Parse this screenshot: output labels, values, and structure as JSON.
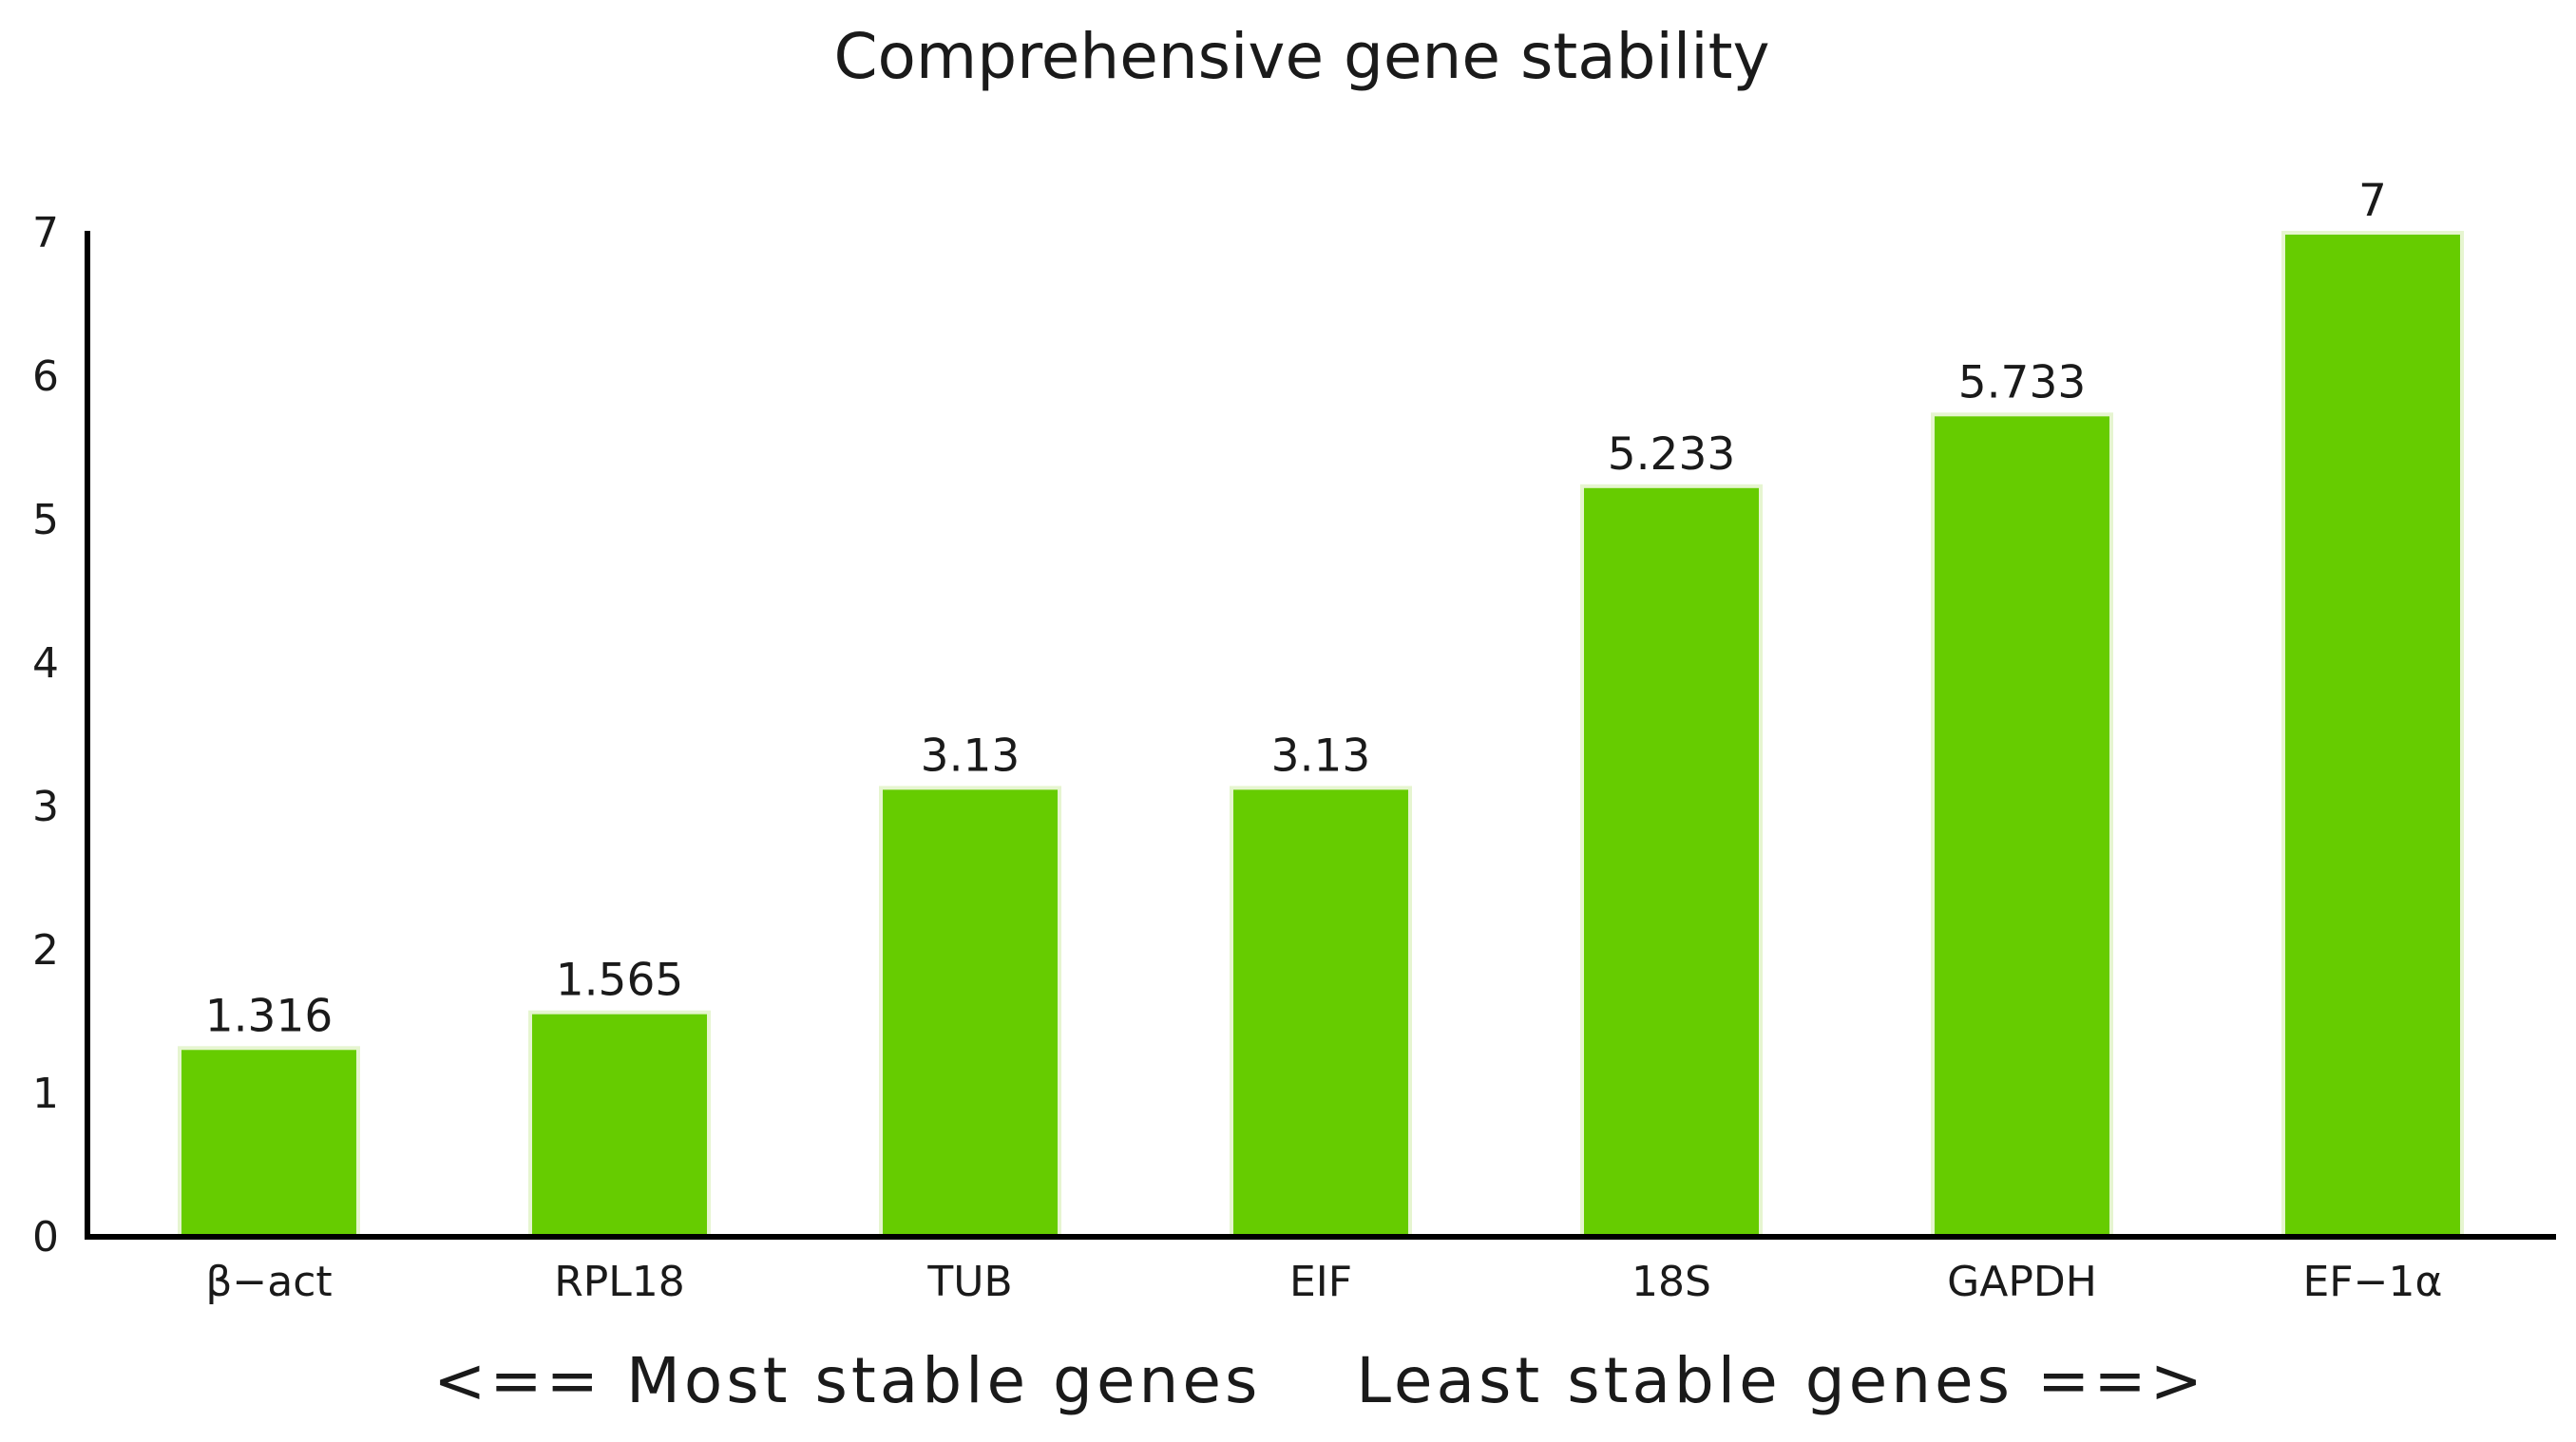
{
  "chart_data": {
    "type": "bar",
    "title": "Comprehensive gene stability",
    "xlabel": "<== Most stable genes    Least stable genes ==>",
    "ylabel": "",
    "categories": [
      "β−act",
      "RPL18",
      "TUB",
      "EIF",
      "18S",
      "GAPDH",
      "EF−1α"
    ],
    "values": [
      1.316,
      1.565,
      3.13,
      3.13,
      5.233,
      5.733,
      7
    ],
    "value_labels": [
      "1.316",
      "1.565",
      "3.13",
      "3.13",
      "5.233",
      "5.733",
      "7"
    ],
    "ylim": [
      0,
      7
    ],
    "yticks": [
      0,
      1,
      2,
      3,
      4,
      5,
      6,
      7
    ],
    "grid": false,
    "legend": "none",
    "bar_color": "#66cc00",
    "bar_edge_color": "#e6f5d0",
    "axis_color": "#000000"
  }
}
